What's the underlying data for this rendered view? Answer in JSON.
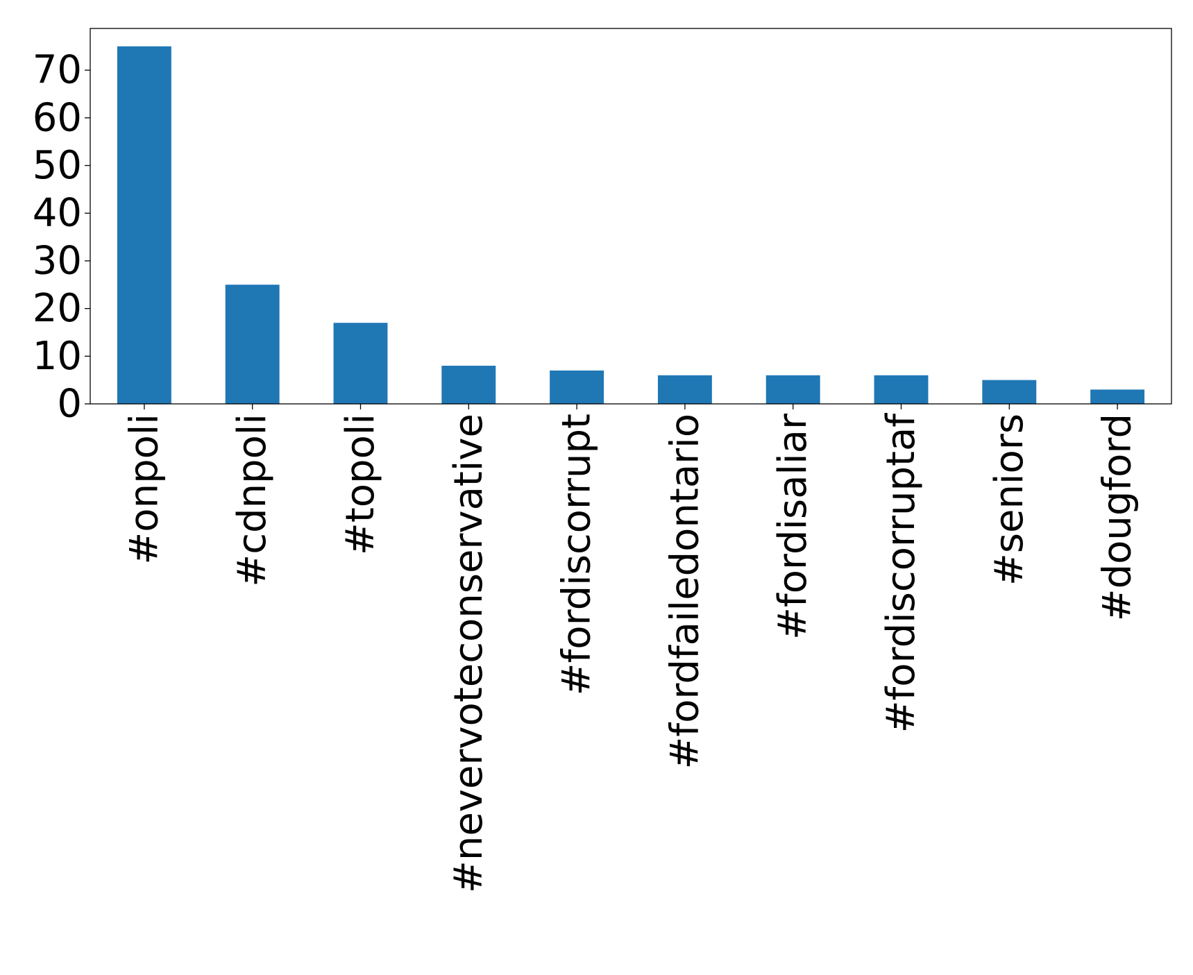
{
  "chart_data": {
    "type": "bar",
    "title": "",
    "xlabel": "",
    "ylabel": "",
    "categories": [
      "#onpoli",
      "#cdnpoli",
      "#topoli",
      "#nevervoteconservative",
      "#fordiscorrupt",
      "#fordfailedontario",
      "#fordisaliar",
      "#fordiscorruptaf",
      "#seniors",
      "#dougford"
    ],
    "values": [
      75,
      25,
      17,
      8,
      7,
      6,
      6,
      6,
      5,
      3
    ],
    "ylim": [
      0,
      78.75
    ],
    "yticks": [
      0,
      10,
      20,
      30,
      40,
      50,
      60,
      70
    ],
    "ytick_labels": [
      "0",
      "10",
      "20",
      "30",
      "40",
      "50",
      "60",
      "70"
    ],
    "xtick_rotation": "vertical",
    "grid": false,
    "legend": "none",
    "bar_color": "#1f77b4"
  }
}
